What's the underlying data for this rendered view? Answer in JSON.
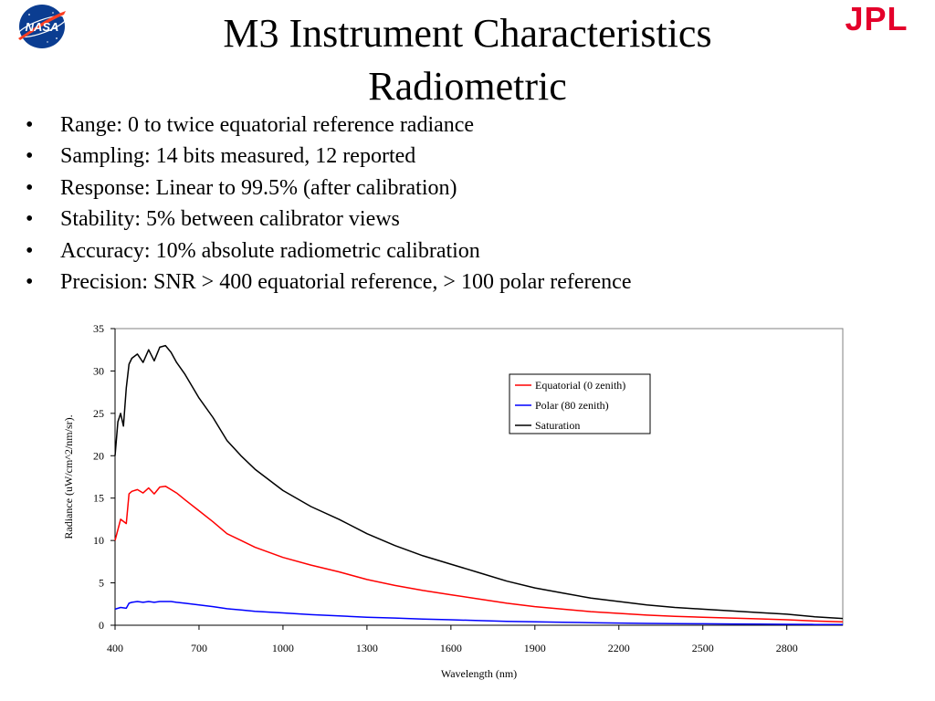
{
  "slide": {
    "title_line1": "M3 Instrument Characteristics",
    "title_line2": "Radiometric",
    "logos": {
      "left": "NASA",
      "right": "JPL"
    },
    "bullet_char": "•",
    "bullets": [
      "Range: 0 to twice equatorial reference radiance",
      "Sampling: 14 bits measured, 12 reported",
      "Response: Linear to 99.5% (after calibration)",
      "Stability: 5% between calibrator views",
      "Accuracy: 10% absolute radiometric calibration",
      "Precision: SNR > 400 equatorial reference, > 100 polar reference"
    ]
  },
  "colors": {
    "equatorial": "#ff0000",
    "polar": "#0000ff",
    "saturation": "#000000",
    "jpl": "#e4002b",
    "nasa_blue": "#0b3d91"
  },
  "chart_data": {
    "type": "line",
    "title": "",
    "xlabel": "Wavelength (nm)",
    "ylabel": "Radiance (uW/cm^2/nm/sr).",
    "xlim": [
      400,
      3000
    ],
    "ylim": [
      0,
      35
    ],
    "xticks": [
      400,
      700,
      1000,
      1300,
      1600,
      1900,
      2200,
      2500,
      2800
    ],
    "yticks": [
      0,
      5,
      10,
      15,
      20,
      25,
      30,
      35
    ],
    "grid": false,
    "legend_position": "top-right",
    "series": [
      {
        "name": "Equatorial (0 zenith)",
        "color": "#ff0000",
        "x": [
          400,
          420,
          440,
          450,
          460,
          480,
          500,
          520,
          540,
          560,
          580,
          600,
          620,
          650,
          700,
          750,
          800,
          850,
          900,
          1000,
          1100,
          1200,
          1300,
          1400,
          1500,
          1600,
          1700,
          1800,
          1900,
          2000,
          2100,
          2200,
          2300,
          2400,
          2500,
          2600,
          2700,
          2800,
          2900,
          3000
        ],
        "y": [
          10.0,
          12.5,
          12.0,
          15.5,
          15.8,
          16.0,
          15.6,
          16.2,
          15.5,
          16.3,
          16.4,
          16.0,
          15.6,
          14.8,
          13.5,
          12.2,
          10.8,
          10.0,
          9.2,
          8.0,
          7.1,
          6.3,
          5.4,
          4.7,
          4.1,
          3.6,
          3.1,
          2.6,
          2.2,
          1.9,
          1.6,
          1.4,
          1.2,
          1.05,
          0.95,
          0.85,
          0.75,
          0.65,
          0.5,
          0.4
        ]
      },
      {
        "name": "Polar (80 zenith)",
        "color": "#0000ff",
        "x": [
          400,
          420,
          440,
          450,
          460,
          480,
          500,
          520,
          540,
          560,
          580,
          600,
          620,
          650,
          700,
          750,
          800,
          850,
          900,
          1000,
          1100,
          1200,
          1300,
          1400,
          1500,
          1600,
          1700,
          1800,
          1900,
          2000,
          2100,
          2200,
          2300,
          2400,
          2500,
          2600,
          2700,
          2800,
          2900,
          3000
        ],
        "y": [
          1.9,
          2.1,
          2.0,
          2.6,
          2.7,
          2.8,
          2.7,
          2.8,
          2.7,
          2.8,
          2.8,
          2.8,
          2.7,
          2.6,
          2.4,
          2.2,
          1.95,
          1.8,
          1.65,
          1.45,
          1.25,
          1.1,
          0.95,
          0.85,
          0.72,
          0.65,
          0.55,
          0.46,
          0.4,
          0.35,
          0.3,
          0.26,
          0.22,
          0.19,
          0.17,
          0.15,
          0.13,
          0.11,
          0.09,
          0.08
        ]
      },
      {
        "name": "Saturation",
        "color": "#000000",
        "x": [
          400,
          410,
          420,
          430,
          440,
          450,
          460,
          480,
          500,
          520,
          540,
          560,
          580,
          600,
          620,
          650,
          700,
          750,
          800,
          850,
          900,
          1000,
          1100,
          1200,
          1300,
          1400,
          1500,
          1600,
          1700,
          1800,
          1900,
          2000,
          2100,
          2200,
          2300,
          2400,
          2500,
          2600,
          2700,
          2800,
          2900,
          3000
        ],
        "y": [
          20.0,
          24.0,
          25.0,
          23.5,
          28.0,
          30.8,
          31.5,
          32.0,
          31.0,
          32.5,
          31.2,
          32.8,
          33.0,
          32.2,
          31.0,
          29.6,
          26.8,
          24.5,
          21.8,
          20.0,
          18.4,
          15.9,
          14.0,
          12.5,
          10.8,
          9.4,
          8.2,
          7.2,
          6.2,
          5.2,
          4.4,
          3.8,
          3.2,
          2.8,
          2.4,
          2.1,
          1.9,
          1.7,
          1.5,
          1.3,
          1.0,
          0.8
        ]
      }
    ]
  }
}
